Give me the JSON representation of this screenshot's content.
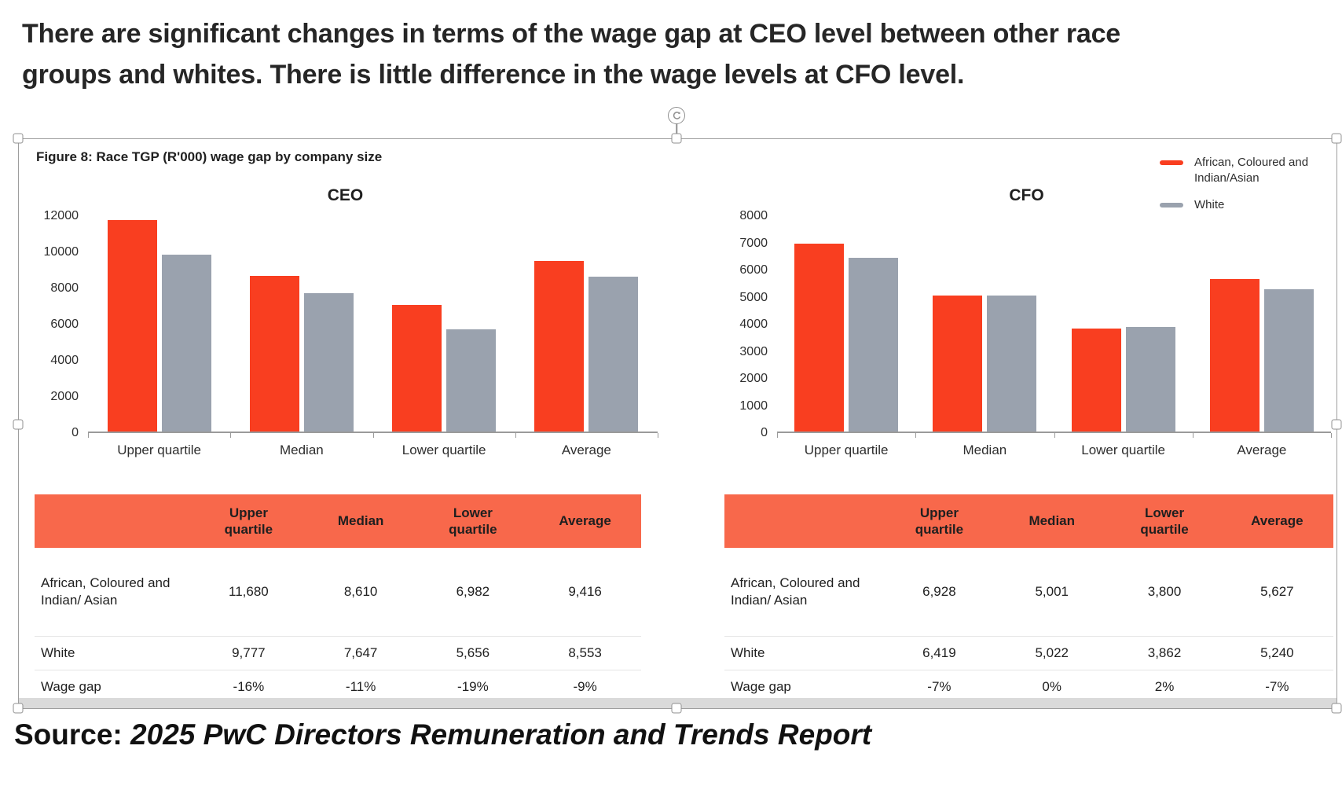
{
  "headline": "There are significant changes in terms of the wage gap at CEO level between other race groups and whites. There is little difference in the wage levels at CFO level.",
  "figure": {
    "caption": "Figure 8: Race TGP (R'000) wage gap by company size",
    "legend": [
      {
        "label": "African, Coloured and Indian/Asian",
        "color": "#f93e20"
      },
      {
        "label": "White",
        "color": "#9aa2ae"
      }
    ]
  },
  "colors": {
    "series_red": "#f93e20",
    "series_gray": "#9aa2ae",
    "table_header": "#f8684b",
    "axis_line": "#9a9a9a"
  },
  "chart_data": [
    {
      "type": "bar",
      "title": "CEO",
      "categories": [
        "Upper quartile",
        "Median",
        "Lower quartile",
        "Average"
      ],
      "series": [
        {
          "name": "African, Coloured and Indian/Asian",
          "color": "#f93e20",
          "values": [
            11680,
            8610,
            6982,
            9416
          ]
        },
        {
          "name": "White",
          "color": "#9aa2ae",
          "values": [
            9777,
            7647,
            5656,
            8553
          ]
        }
      ],
      "ylim": [
        0,
        12000
      ],
      "ytick_step": 2000,
      "grid": false,
      "legend_position": "top-right"
    },
    {
      "type": "bar",
      "title": "CFO",
      "categories": [
        "Upper quartile",
        "Median",
        "Lower quartile",
        "Average"
      ],
      "series": [
        {
          "name": "African, Coloured and Indian/Asian",
          "color": "#f93e20",
          "values": [
            6928,
            5001,
            3800,
            5627
          ]
        },
        {
          "name": "White",
          "color": "#9aa2ae",
          "values": [
            6419,
            5022,
            3862,
            5240
          ]
        }
      ],
      "ylim": [
        0,
        8000
      ],
      "ytick_step": 1000,
      "grid": false,
      "legend_position": "top-right"
    }
  ],
  "tables": [
    {
      "id": "ceo",
      "columns": [
        "",
        "Upper quartile",
        "Median",
        "Lower quartile",
        "Average"
      ],
      "rows": [
        {
          "label": "African, Coloured and Indian/ Asian",
          "values": [
            "11,680",
            "8,610",
            "6,982",
            "9,416"
          ]
        },
        {
          "label": "White",
          "values": [
            "9,777",
            "7,647",
            "5,656",
            "8,553"
          ]
        },
        {
          "label": "Wage gap",
          "values": [
            "-16%",
            "-11%",
            "-19%",
            "-9%"
          ]
        }
      ]
    },
    {
      "id": "cfo",
      "columns": [
        "",
        "Upper quartile",
        "Median",
        "Lower quartile",
        "Average"
      ],
      "rows": [
        {
          "label": "African, Coloured and Indian/ Asian",
          "values": [
            "6,928",
            "5,001",
            "3,800",
            "5,627"
          ]
        },
        {
          "label": "White",
          "values": [
            "6,419",
            "5,022",
            "3,862",
            "5,240"
          ]
        },
        {
          "label": "Wage gap",
          "values": [
            "-7%",
            "0%",
            "2%",
            "-7%"
          ]
        }
      ]
    }
  ],
  "source": {
    "prefix": "Source: ",
    "report": "2025 PwC Directors Remuneration and Trends Report"
  }
}
